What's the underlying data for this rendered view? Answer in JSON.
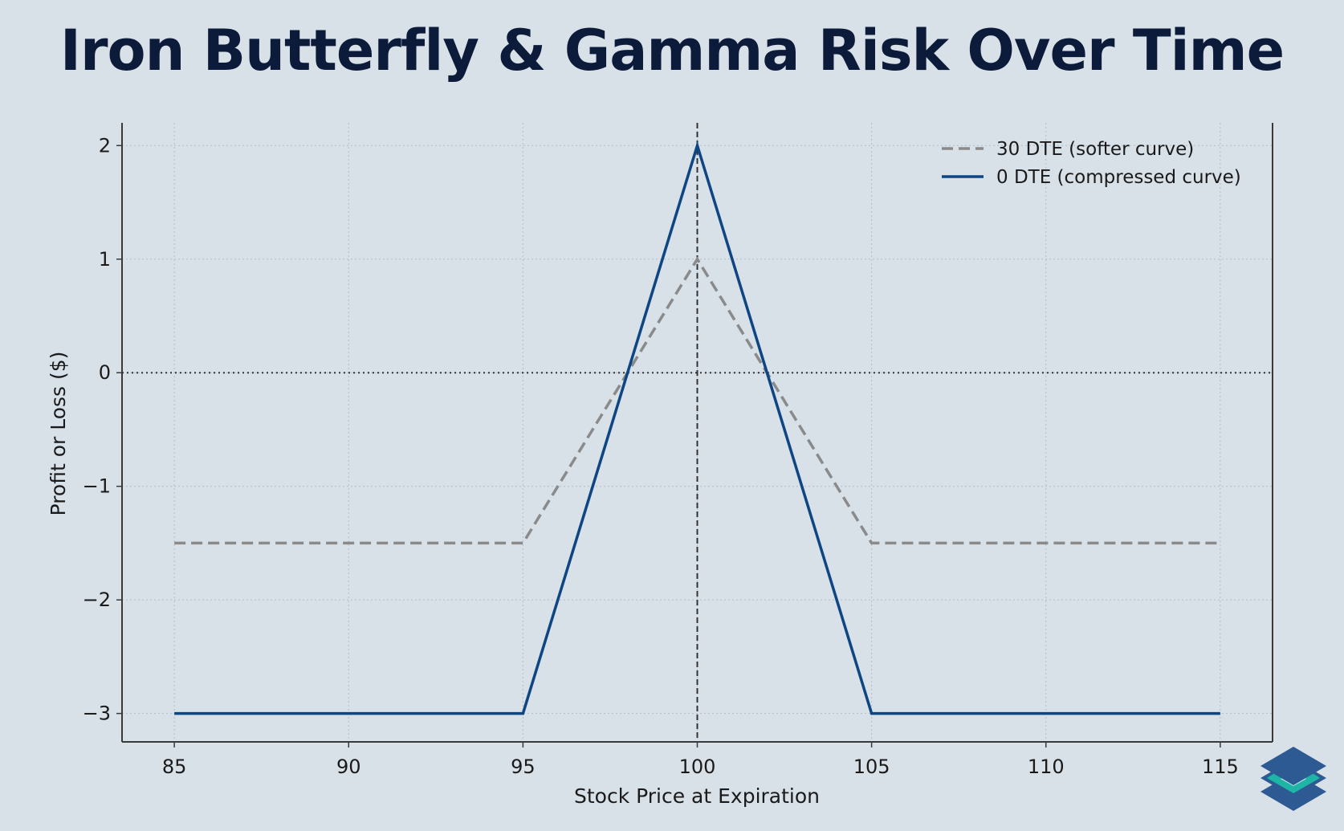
{
  "page": {
    "background": "#d8e0e8",
    "logo_icon": "stacked-diamond-logo-icon"
  },
  "chart_data": {
    "type": "line",
    "title": "Iron Butterfly & Gamma Risk Over Time",
    "xlabel": "Stock Price at Expiration",
    "ylabel": "Profit or Loss ($)",
    "xlim": [
      83.5,
      116.5
    ],
    "ylim": [
      -3.25,
      2.2
    ],
    "x_ticks": [
      85,
      90,
      95,
      100,
      105,
      110,
      115
    ],
    "x_tick_labels": [
      "85",
      "90",
      "95",
      "100",
      "105",
      "110",
      "115"
    ],
    "y_ticks": [
      2,
      1,
      0,
      -1,
      -2,
      -3
    ],
    "y_tick_labels": [
      "2",
      "1",
      "0",
      "−1",
      "−2",
      "−3"
    ],
    "grid": true,
    "legend_position": "top-right",
    "series": [
      {
        "name": "30 DTE (softer curve)",
        "style": "dashed",
        "color": "#8a8a8a",
        "x": [
          85,
          95,
          100,
          105,
          115
        ],
        "y": [
          -1.5,
          -1.5,
          1,
          -1.5,
          -1.5
        ]
      },
      {
        "name": "0 DTE (compressed curve)",
        "style": "solid",
        "color": "#0e4683",
        "x": [
          85,
          95,
          100,
          105,
          115
        ],
        "y": [
          -3,
          -3,
          2,
          -3,
          -3
        ]
      }
    ],
    "reference_lines": [
      {
        "axis": "y",
        "value": 0,
        "style": "dotted",
        "color": "#333333"
      },
      {
        "axis": "x",
        "value": 100,
        "style": "dashed",
        "color": "#333333"
      }
    ]
  }
}
